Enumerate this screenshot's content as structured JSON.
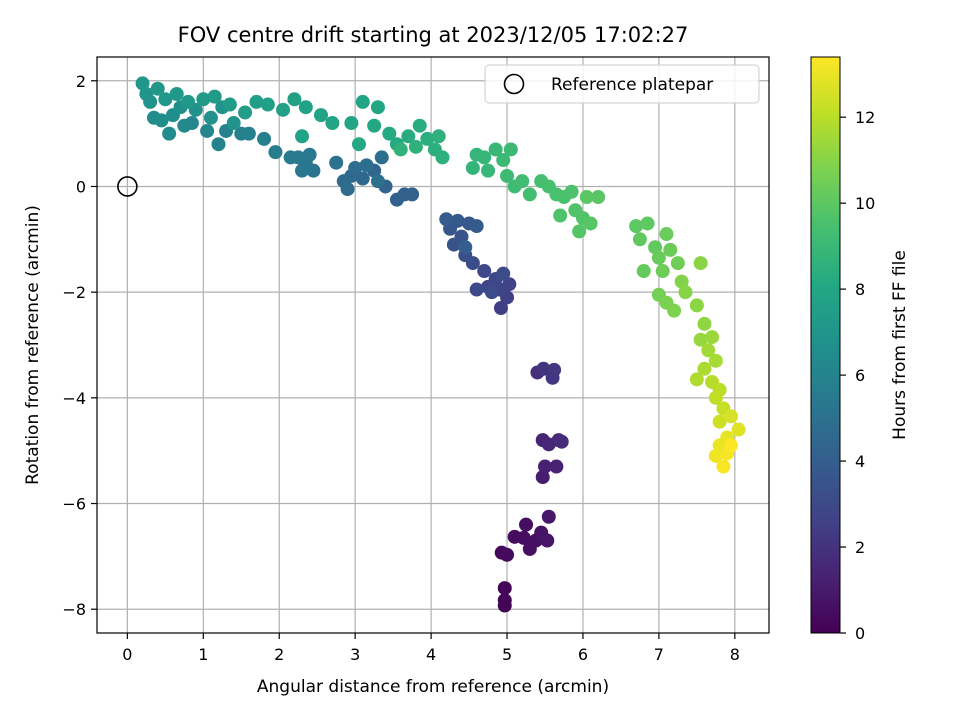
{
  "chart_data": {
    "type": "scatter",
    "title": "FOV centre drift starting at 2023/12/05 17:02:27",
    "xlabel": "Angular distance from reference (arcmin)",
    "ylabel": "Rotation from reference (arcmin)",
    "xlim": [
      -0.4,
      8.45
    ],
    "ylim": [
      -8.45,
      2.45
    ],
    "xticks": [
      0,
      1,
      2,
      3,
      4,
      5,
      6,
      7,
      8
    ],
    "yticks": [
      -8,
      -6,
      -4,
      -2,
      0,
      2
    ],
    "xtick_labels": [
      "0",
      "1",
      "2",
      "3",
      "4",
      "5",
      "6",
      "7",
      "8"
    ],
    "ytick_labels": [
      "−8",
      "−6",
      "−4",
      "−2",
      "0",
      "2"
    ],
    "grid": true,
    "legend": {
      "position": "top-right",
      "entries": [
        {
          "label": "Reference platepar",
          "marker": "open-circle"
        }
      ]
    },
    "reference_point": {
      "x": 0,
      "y": 0
    },
    "colorbar": {
      "label": "Hours from first FF file",
      "colormap": "viridis",
      "range": [
        0,
        13.4
      ],
      "ticks": [
        0,
        2,
        4,
        6,
        8,
        10,
        12
      ],
      "tick_labels": [
        "0",
        "2",
        "4",
        "6",
        "8",
        "10",
        "12"
      ]
    },
    "points": [
      {
        "x": 4.97,
        "y": -7.93,
        "h": 0.1
      },
      {
        "x": 4.97,
        "y": -7.83,
        "h": 0.15
      },
      {
        "x": 4.97,
        "y": -7.6,
        "h": 0.2
      },
      {
        "x": 4.93,
        "y": -6.93,
        "h": 0.3
      },
      {
        "x": 5.0,
        "y": -6.97,
        "h": 0.35
      },
      {
        "x": 5.1,
        "y": -6.63,
        "h": 0.4
      },
      {
        "x": 5.22,
        "y": -6.65,
        "h": 0.45
      },
      {
        "x": 5.25,
        "y": -6.4,
        "h": 0.5
      },
      {
        "x": 5.3,
        "y": -6.86,
        "h": 0.55
      },
      {
        "x": 5.38,
        "y": -6.7,
        "h": 0.6
      },
      {
        "x": 5.45,
        "y": -6.55,
        "h": 0.7
      },
      {
        "x": 5.53,
        "y": -6.7,
        "h": 0.8
      },
      {
        "x": 5.55,
        "y": -6.25,
        "h": 0.9
      },
      {
        "x": 5.47,
        "y": -5.5,
        "h": 1.1
      },
      {
        "x": 5.5,
        "y": -5.3,
        "h": 1.2
      },
      {
        "x": 5.65,
        "y": -5.3,
        "h": 1.3
      },
      {
        "x": 5.47,
        "y": -4.8,
        "h": 1.4
      },
      {
        "x": 5.55,
        "y": -4.88,
        "h": 1.5
      },
      {
        "x": 5.68,
        "y": -4.8,
        "h": 1.6
      },
      {
        "x": 5.72,
        "y": -4.83,
        "h": 1.7
      },
      {
        "x": 5.4,
        "y": -3.52,
        "h": 1.9
      },
      {
        "x": 5.48,
        "y": -3.45,
        "h": 2.0
      },
      {
        "x": 5.6,
        "y": -3.62,
        "h": 2.1
      },
      {
        "x": 5.62,
        "y": -3.47,
        "h": 2.2
      },
      {
        "x": 4.92,
        "y": -2.3,
        "h": 2.5
      },
      {
        "x": 5.0,
        "y": -2.1,
        "h": 2.6
      },
      {
        "x": 5.03,
        "y": -1.85,
        "h": 2.7
      },
      {
        "x": 4.9,
        "y": -1.95,
        "h": 2.75
      },
      {
        "x": 4.75,
        "y": -1.9,
        "h": 2.8
      },
      {
        "x": 4.85,
        "y": -1.75,
        "h": 2.9
      },
      {
        "x": 4.7,
        "y": -1.6,
        "h": 3.0
      },
      {
        "x": 4.6,
        "y": -1.95,
        "h": 3.05
      },
      {
        "x": 4.8,
        "y": -2.0,
        "h": 3.1
      },
      {
        "x": 4.95,
        "y": -1.65,
        "h": 3.15
      },
      {
        "x": 4.55,
        "y": -1.45,
        "h": 3.2
      },
      {
        "x": 4.45,
        "y": -1.3,
        "h": 3.3
      },
      {
        "x": 4.3,
        "y": -1.1,
        "h": 3.4
      },
      {
        "x": 4.4,
        "y": -0.95,
        "h": 3.5
      },
      {
        "x": 4.25,
        "y": -0.8,
        "h": 3.6
      },
      {
        "x": 4.5,
        "y": -0.7,
        "h": 3.7
      },
      {
        "x": 4.35,
        "y": -0.65,
        "h": 3.75
      },
      {
        "x": 4.6,
        "y": -0.75,
        "h": 3.8
      },
      {
        "x": 4.2,
        "y": -0.62,
        "h": 3.9
      },
      {
        "x": 4.45,
        "y": -1.15,
        "h": 3.95
      },
      {
        "x": 3.65,
        "y": -0.15,
        "h": 4.1
      },
      {
        "x": 3.55,
        "y": -0.25,
        "h": 4.15
      },
      {
        "x": 3.75,
        "y": -0.15,
        "h": 4.2
      },
      {
        "x": 3.4,
        "y": 0.0,
        "h": 4.3
      },
      {
        "x": 3.25,
        "y": 0.3,
        "h": 4.4
      },
      {
        "x": 3.1,
        "y": 0.15,
        "h": 4.5
      },
      {
        "x": 2.95,
        "y": 0.2,
        "h": 4.6
      },
      {
        "x": 2.85,
        "y": 0.1,
        "h": 4.7
      },
      {
        "x": 2.9,
        "y": -0.05,
        "h": 4.75
      },
      {
        "x": 3.0,
        "y": 0.35,
        "h": 4.8
      },
      {
        "x": 3.15,
        "y": 0.4,
        "h": 4.85
      },
      {
        "x": 3.35,
        "y": 0.55,
        "h": 4.9
      },
      {
        "x": 3.3,
        "y": 0.1,
        "h": 4.95
      },
      {
        "x": 2.75,
        "y": 0.45,
        "h": 5.0
      },
      {
        "x": 2.45,
        "y": 0.3,
        "h": 5.1
      },
      {
        "x": 2.35,
        "y": 0.45,
        "h": 5.2
      },
      {
        "x": 2.3,
        "y": 0.3,
        "h": 5.3
      },
      {
        "x": 2.4,
        "y": 0.6,
        "h": 5.35
      },
      {
        "x": 2.25,
        "y": 0.55,
        "h": 5.4
      },
      {
        "x": 2.15,
        "y": 0.55,
        "h": 5.5
      },
      {
        "x": 1.95,
        "y": 0.65,
        "h": 5.6
      },
      {
        "x": 1.8,
        "y": 0.9,
        "h": 5.7
      },
      {
        "x": 1.6,
        "y": 1.0,
        "h": 5.8
      },
      {
        "x": 1.5,
        "y": 1.0,
        "h": 5.85
      },
      {
        "x": 1.3,
        "y": 1.05,
        "h": 5.9
      },
      {
        "x": 1.2,
        "y": 0.8,
        "h": 6.0
      },
      {
        "x": 1.05,
        "y": 1.05,
        "h": 6.1
      },
      {
        "x": 0.85,
        "y": 1.2,
        "h": 6.2
      },
      {
        "x": 0.75,
        "y": 1.15,
        "h": 6.3
      },
      {
        "x": 0.55,
        "y": 1.0,
        "h": 6.4
      },
      {
        "x": 0.45,
        "y": 1.25,
        "h": 6.5
      },
      {
        "x": 0.35,
        "y": 1.3,
        "h": 6.6
      },
      {
        "x": 0.6,
        "y": 1.35,
        "h": 6.65
      },
      {
        "x": 0.7,
        "y": 1.5,
        "h": 6.7
      },
      {
        "x": 0.9,
        "y": 1.45,
        "h": 6.75
      },
      {
        "x": 1.1,
        "y": 1.3,
        "h": 6.8
      },
      {
        "x": 1.25,
        "y": 1.5,
        "h": 6.85
      },
      {
        "x": 1.4,
        "y": 1.2,
        "h": 6.9
      },
      {
        "x": 0.3,
        "y": 1.6,
        "h": 6.95
      },
      {
        "x": 0.25,
        "y": 1.75,
        "h": 7.0
      },
      {
        "x": 0.2,
        "y": 1.95,
        "h": 7.05
      },
      {
        "x": 0.4,
        "y": 1.85,
        "h": 7.1
      },
      {
        "x": 0.5,
        "y": 1.65,
        "h": 7.15
      },
      {
        "x": 0.65,
        "y": 1.75,
        "h": 7.2
      },
      {
        "x": 0.8,
        "y": 1.6,
        "h": 7.25
      },
      {
        "x": 1.0,
        "y": 1.65,
        "h": 7.3
      },
      {
        "x": 1.15,
        "y": 1.7,
        "h": 7.35
      },
      {
        "x": 1.35,
        "y": 1.55,
        "h": 7.4
      },
      {
        "x": 1.55,
        "y": 1.4,
        "h": 7.45
      },
      {
        "x": 1.7,
        "y": 1.6,
        "h": 7.5
      },
      {
        "x": 1.85,
        "y": 1.55,
        "h": 7.55
      },
      {
        "x": 2.05,
        "y": 1.45,
        "h": 7.6
      },
      {
        "x": 2.2,
        "y": 1.65,
        "h": 7.65
      },
      {
        "x": 2.35,
        "y": 1.5,
        "h": 7.7
      },
      {
        "x": 2.55,
        "y": 1.35,
        "h": 7.75
      },
      {
        "x": 2.3,
        "y": 0.95,
        "h": 7.8
      },
      {
        "x": 2.7,
        "y": 1.2,
        "h": 7.85
      },
      {
        "x": 2.95,
        "y": 1.2,
        "h": 7.9
      },
      {
        "x": 3.1,
        "y": 1.6,
        "h": 7.95
      },
      {
        "x": 3.25,
        "y": 1.15,
        "h": 8.0
      },
      {
        "x": 3.3,
        "y": 1.5,
        "h": 8.05
      },
      {
        "x": 3.05,
        "y": 0.8,
        "h": 8.1
      },
      {
        "x": 3.45,
        "y": 1.0,
        "h": 8.15
      },
      {
        "x": 3.55,
        "y": 0.8,
        "h": 8.2
      },
      {
        "x": 3.7,
        "y": 0.95,
        "h": 8.3
      },
      {
        "x": 3.85,
        "y": 1.15,
        "h": 8.35
      },
      {
        "x": 3.95,
        "y": 0.9,
        "h": 8.4
      },
      {
        "x": 4.05,
        "y": 0.7,
        "h": 8.45
      },
      {
        "x": 4.15,
        "y": 0.55,
        "h": 8.5
      },
      {
        "x": 4.1,
        "y": 0.95,
        "h": 8.55
      },
      {
        "x": 3.8,
        "y": 0.75,
        "h": 8.6
      },
      {
        "x": 3.6,
        "y": 0.7,
        "h": 8.65
      },
      {
        "x": 4.55,
        "y": 0.35,
        "h": 8.8
      },
      {
        "x": 4.6,
        "y": 0.6,
        "h": 8.85
      },
      {
        "x": 4.7,
        "y": 0.55,
        "h": 8.9
      },
      {
        "x": 4.75,
        "y": 0.3,
        "h": 8.95
      },
      {
        "x": 4.85,
        "y": 0.7,
        "h": 9.0
      },
      {
        "x": 4.95,
        "y": 0.5,
        "h": 9.05
      },
      {
        "x": 5.05,
        "y": 0.7,
        "h": 9.1
      },
      {
        "x": 5.0,
        "y": 0.2,
        "h": 9.15
      },
      {
        "x": 5.1,
        "y": 0.0,
        "h": 9.2
      },
      {
        "x": 5.2,
        "y": 0.1,
        "h": 9.25
      },
      {
        "x": 5.3,
        "y": -0.15,
        "h": 9.3
      },
      {
        "x": 5.45,
        "y": 0.1,
        "h": 9.4
      },
      {
        "x": 5.55,
        "y": 0.0,
        "h": 9.45
      },
      {
        "x": 5.65,
        "y": -0.15,
        "h": 9.5
      },
      {
        "x": 5.75,
        "y": -0.2,
        "h": 9.55
      },
      {
        "x": 5.85,
        "y": -0.1,
        "h": 9.6
      },
      {
        "x": 5.7,
        "y": -0.55,
        "h": 9.65
      },
      {
        "x": 5.9,
        "y": -0.45,
        "h": 9.7
      },
      {
        "x": 6.0,
        "y": -0.6,
        "h": 9.75
      },
      {
        "x": 5.95,
        "y": -0.85,
        "h": 9.8
      },
      {
        "x": 6.1,
        "y": -0.7,
        "h": 9.85
      },
      {
        "x": 6.2,
        "y": -0.2,
        "h": 9.9
      },
      {
        "x": 6.05,
        "y": -0.2,
        "h": 9.95
      },
      {
        "x": 6.7,
        "y": -0.75,
        "h": 10.0
      },
      {
        "x": 6.85,
        "y": -0.7,
        "h": 10.05
      },
      {
        "x": 6.75,
        "y": -1.0,
        "h": 10.1
      },
      {
        "x": 6.95,
        "y": -1.15,
        "h": 10.15
      },
      {
        "x": 6.8,
        "y": -1.6,
        "h": 10.2
      },
      {
        "x": 7.0,
        "y": -1.35,
        "h": 10.3
      },
      {
        "x": 7.1,
        "y": -0.9,
        "h": 10.35
      },
      {
        "x": 7.15,
        "y": -1.2,
        "h": 10.4
      },
      {
        "x": 7.05,
        "y": -1.6,
        "h": 10.45
      },
      {
        "x": 7.25,
        "y": -1.45,
        "h": 10.5
      },
      {
        "x": 7.0,
        "y": -2.05,
        "h": 10.6
      },
      {
        "x": 7.1,
        "y": -2.2,
        "h": 10.7
      },
      {
        "x": 7.2,
        "y": -2.35,
        "h": 10.8
      },
      {
        "x": 7.3,
        "y": -1.8,
        "h": 10.9
      },
      {
        "x": 7.35,
        "y": -2.0,
        "h": 11.0
      },
      {
        "x": 7.55,
        "y": -1.45,
        "h": 11.05
      },
      {
        "x": 7.5,
        "y": -2.25,
        "h": 11.1
      },
      {
        "x": 7.6,
        "y": -2.6,
        "h": 11.2
      },
      {
        "x": 7.55,
        "y": -2.9,
        "h": 11.3
      },
      {
        "x": 7.7,
        "y": -2.85,
        "h": 11.4
      },
      {
        "x": 7.65,
        "y": -3.1,
        "h": 11.5
      },
      {
        "x": 7.75,
        "y": -3.3,
        "h": 11.6
      },
      {
        "x": 7.6,
        "y": -3.45,
        "h": 11.7
      },
      {
        "x": 7.5,
        "y": -3.65,
        "h": 11.8
      },
      {
        "x": 7.7,
        "y": -3.7,
        "h": 11.9
      },
      {
        "x": 7.8,
        "y": -3.85,
        "h": 12.0
      },
      {
        "x": 7.75,
        "y": -4.0,
        "h": 12.1
      },
      {
        "x": 7.85,
        "y": -4.2,
        "h": 12.2
      },
      {
        "x": 7.8,
        "y": -4.45,
        "h": 12.4
      },
      {
        "x": 7.95,
        "y": -4.35,
        "h": 12.6
      },
      {
        "x": 8.05,
        "y": -4.6,
        "h": 12.8
      },
      {
        "x": 7.9,
        "y": -4.75,
        "h": 12.9
      },
      {
        "x": 7.8,
        "y": -4.9,
        "h": 13.0
      },
      {
        "x": 7.75,
        "y": -5.1,
        "h": 13.1
      },
      {
        "x": 7.9,
        "y": -5.05,
        "h": 13.2
      },
      {
        "x": 7.85,
        "y": -5.3,
        "h": 13.3
      },
      {
        "x": 7.95,
        "y": -4.9,
        "h": 13.4
      }
    ]
  }
}
